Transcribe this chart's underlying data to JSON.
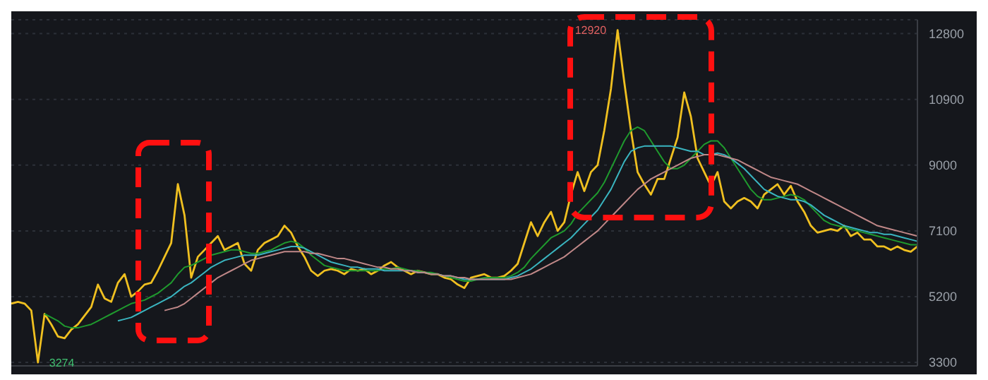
{
  "chart_data": {
    "type": "line",
    "categories": [
      null,
      null,
      null,
      null,
      null,
      null,
      null,
      null,
      null,
      null,
      null,
      null,
      null,
      null,
      null,
      null,
      null,
      null,
      null,
      null,
      null,
      null,
      null,
      null,
      null,
      null,
      null,
      null,
      null,
      null,
      null,
      null,
      null,
      null,
      null,
      null,
      null,
      null,
      null,
      null,
      null,
      null,
      null,
      null,
      null,
      null,
      null,
      null,
      null,
      null,
      null,
      null,
      null,
      null,
      null,
      null,
      null,
      null,
      null,
      null,
      null,
      null,
      null,
      null,
      null,
      null,
      null,
      null,
      null,
      null,
      null,
      null,
      null,
      null,
      null,
      null,
      null,
      null,
      null,
      null,
      null,
      null,
      null,
      null,
      null,
      null,
      null,
      null,
      null,
      null,
      null,
      null,
      null,
      null,
      null,
      null,
      null,
      null,
      null,
      null,
      null,
      null,
      null,
      null,
      null,
      null,
      null,
      null,
      null,
      null,
      null,
      null,
      null,
      null,
      null,
      null,
      null,
      null,
      null,
      null,
      null,
      null,
      null,
      null,
      null,
      null,
      null,
      null,
      null,
      null,
      null,
      null,
      null,
      null,
      null,
      null,
      null
    ],
    "series": [
      {
        "color": "#f0c020",
        "values": [
          5000,
          5050,
          5000,
          4800,
          3300,
          4700,
          4400,
          4050,
          4000,
          4250,
          4400,
          4650,
          4900,
          5550,
          5150,
          5050,
          5600,
          5850,
          5200,
          5350,
          5550,
          5600,
          5950,
          6350,
          6750,
          8450,
          7550,
          5750,
          6350,
          6550,
          6750,
          6950,
          6550,
          6650,
          6750,
          6150,
          5950,
          6550,
          6750,
          6850,
          6950,
          7250,
          7050,
          6650,
          6350,
          5950,
          5800,
          5950,
          6000,
          5950,
          5850,
          6000,
          5950,
          6000,
          5850,
          5950,
          6100,
          6200,
          6050,
          5950,
          5850,
          5950,
          5900,
          5850,
          5850,
          5750,
          5700,
          5550,
          5450,
          5750,
          5800,
          5850,
          5750,
          5750,
          5800,
          5950,
          6150,
          6750,
          7350,
          6950,
          7350,
          7650,
          7100,
          7350,
          8150,
          8800,
          8250,
          8800,
          9000,
          10000,
          11200,
          12900,
          11400,
          10000,
          8800,
          8450,
          8150,
          8600,
          8600,
          9200,
          9800,
          11100,
          10400,
          9200,
          8800,
          8400,
          8800,
          7950,
          7750,
          7950,
          8050,
          7950,
          7750,
          8150,
          8300,
          8450,
          8150,
          8400,
          7950,
          7650,
          7250,
          7050,
          7100,
          7150,
          7100,
          7250,
          6950,
          7050,
          6850,
          6850,
          6650,
          6650,
          6550,
          6650,
          6550,
          6500,
          6650
        ]
      },
      {
        "color": "#1f9a2e",
        "values": [
          null,
          null,
          null,
          null,
          null,
          4700,
          4600,
          4500,
          4350,
          4300,
          4300,
          4350,
          4400,
          4500,
          4600,
          4700,
          4800,
          4900,
          5000,
          5050,
          5100,
          5200,
          5300,
          5450,
          5600,
          5850,
          6050,
          6100,
          6200,
          6300,
          6400,
          6450,
          6500,
          6550,
          6550,
          6500,
          6450,
          6450,
          6500,
          6550,
          6650,
          6750,
          6800,
          6750,
          6600,
          6400,
          6250,
          6100,
          6050,
          6000,
          5950,
          5950,
          5950,
          5950,
          5950,
          5950,
          6000,
          6000,
          6050,
          6000,
          5950,
          5950,
          5900,
          5900,
          5850,
          5800,
          5750,
          5700,
          5650,
          5650,
          5700,
          5750,
          5750,
          5750,
          5750,
          5800,
          5900,
          6050,
          6300,
          6500,
          6700,
          6900,
          7000,
          7100,
          7300,
          7600,
          7800,
          8000,
          8200,
          8500,
          8900,
          9300,
          9700,
          10000,
          10100,
          10000,
          9700,
          9400,
          9100,
          8900,
          8900,
          9000,
          9200,
          9400,
          9600,
          9700,
          9700,
          9500,
          9200,
          8900,
          8600,
          8300,
          8100,
          8000,
          8000,
          8050,
          8100,
          8150,
          8100,
          8000,
          7800,
          7600,
          7400,
          7300,
          7250,
          7200,
          7150,
          7100,
          7050,
          7000,
          6950,
          6900,
          6850,
          6800,
          6750,
          6700,
          6700
        ]
      },
      {
        "color": "#3ab5c0",
        "values": [
          null,
          null,
          null,
          null,
          null,
          null,
          null,
          null,
          null,
          null,
          null,
          null,
          null,
          null,
          null,
          null,
          4500,
          4550,
          4600,
          4700,
          4800,
          4900,
          5000,
          5100,
          5200,
          5350,
          5500,
          5600,
          5750,
          5900,
          6050,
          6150,
          6250,
          6300,
          6350,
          6400,
          6400,
          6400,
          6450,
          6500,
          6550,
          6600,
          6650,
          6650,
          6600,
          6500,
          6400,
          6300,
          6200,
          6150,
          6100,
          6050,
          6050,
          6000,
          6000,
          6000,
          5950,
          5950,
          5950,
          5950,
          5950,
          5900,
          5900,
          5850,
          5850,
          5800,
          5800,
          5750,
          5700,
          5700,
          5700,
          5700,
          5700,
          5700,
          5700,
          5750,
          5800,
          5900,
          6000,
          6150,
          6300,
          6450,
          6600,
          6750,
          6900,
          7100,
          7300,
          7500,
          7700,
          8000,
          8300,
          8700,
          9100,
          9400,
          9500,
          9550,
          9550,
          9550,
          9550,
          9550,
          9500,
          9450,
          9400,
          9400,
          9300,
          9300,
          9350,
          9300,
          9200,
          9050,
          8900,
          8700,
          8500,
          8300,
          8200,
          8100,
          8050,
          8000,
          8000,
          7950,
          7850,
          7700,
          7550,
          7450,
          7350,
          7250,
          7200,
          7150,
          7100,
          7050,
          7050,
          7000,
          7000,
          6950,
          6900,
          6850,
          6800
        ]
      },
      {
        "color": "#c08888",
        "values": [
          null,
          null,
          null,
          null,
          null,
          null,
          null,
          null,
          null,
          null,
          null,
          null,
          null,
          null,
          null,
          null,
          null,
          null,
          null,
          null,
          null,
          null,
          null,
          4800,
          4850,
          4900,
          5000,
          5150,
          5300,
          5450,
          5600,
          5750,
          5850,
          5950,
          6050,
          6150,
          6250,
          6300,
          6350,
          6400,
          6450,
          6500,
          6500,
          6500,
          6500,
          6450,
          6450,
          6400,
          6350,
          6300,
          6300,
          6250,
          6200,
          6150,
          6100,
          6050,
          6050,
          6000,
          6000,
          5950,
          5950,
          5900,
          5900,
          5850,
          5850,
          5800,
          5800,
          5750,
          5750,
          5700,
          5700,
          5700,
          5700,
          5700,
          5700,
          5700,
          5750,
          5800,
          5850,
          5950,
          6050,
          6150,
          6250,
          6350,
          6500,
          6650,
          6800,
          6950,
          7100,
          7300,
          7500,
          7700,
          7900,
          8100,
          8300,
          8450,
          8600,
          8700,
          8800,
          8900,
          9000,
          9100,
          9200,
          9250,
          9300,
          9300,
          9300,
          9250,
          9200,
          9150,
          9050,
          8950,
          8850,
          8750,
          8650,
          8600,
          8550,
          8500,
          8450,
          8350,
          8250,
          8150,
          8050,
          7950,
          7850,
          7750,
          7650,
          7550,
          7450,
          7350,
          7250,
          7200,
          7150,
          7100,
          7050,
          7000,
          6950
        ]
      }
    ],
    "ylim": [
      3200,
      13200
    ],
    "yticks": [
      3300,
      5200,
      7100,
      9000,
      10900,
      12800
    ],
    "grid": "y",
    "tick_labels": "y",
    "marker": "none",
    "line_style": "solid",
    "annotations": [
      "12920",
      "3274"
    ]
  }
}
